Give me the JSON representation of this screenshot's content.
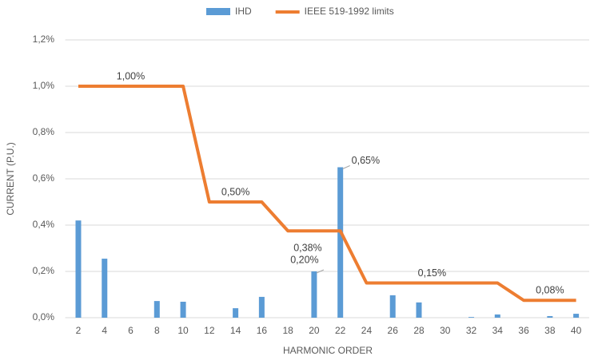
{
  "chart_data": {
    "type": "bar-line",
    "x_label": "HARMONIC ORDER",
    "y_label": "CURRENT (P.U.)",
    "xlim": [
      1,
      41
    ],
    "xticks": [
      2,
      4,
      6,
      8,
      10,
      12,
      14,
      16,
      18,
      20,
      22,
      24,
      26,
      28,
      30,
      32,
      34,
      36,
      38,
      40
    ],
    "ylim": [
      0,
      1.2
    ],
    "yticks": [
      {
        "value": 0,
        "label": "0,0%"
      },
      {
        "value": 0.2,
        "label": "0,2%"
      },
      {
        "value": 0.4,
        "label": "0,4%"
      },
      {
        "value": 0.6,
        "label": "0,6%"
      },
      {
        "value": 0.8,
        "label": "0,8%"
      },
      {
        "value": 1.0,
        "label": "1,0%"
      },
      {
        "value": 1.2,
        "label": "1,2%"
      }
    ],
    "grid": true,
    "legend": "top",
    "series": [
      {
        "name": "IHD",
        "type": "bar",
        "color": "#5b9bd5",
        "x": [
          2,
          4,
          6,
          8,
          10,
          12,
          14,
          16,
          18,
          20,
          22,
          24,
          26,
          28,
          30,
          32,
          34,
          36,
          38,
          40
        ],
        "values": [
          0.42,
          0.255,
          0,
          0.072,
          0.069,
          0,
          0.041,
          0.09,
          0,
          0.2,
          0.65,
          0,
          0.097,
          0.066,
          0,
          0.003,
          0.014,
          0,
          0.007,
          0.017
        ],
        "value_labels": [
          null,
          null,
          null,
          null,
          null,
          null,
          null,
          null,
          null,
          "0,20%",
          "0,65%",
          null,
          null,
          null,
          null,
          null,
          null,
          null,
          null,
          null
        ]
      },
      {
        "name": "IEEE 519-1992 limits",
        "type": "line",
        "color": "#ed7d31",
        "x": [
          2,
          10,
          12,
          16,
          18,
          22,
          24,
          34,
          36,
          40
        ],
        "values": [
          1.0,
          1.0,
          0.5,
          0.5,
          0.375,
          0.375,
          0.15,
          0.15,
          0.075,
          0.075
        ],
        "value_labels": [
          "1,00%",
          null,
          "0,50%",
          null,
          "0,38%",
          null,
          "0,15%",
          null,
          "0,08%",
          null
        ]
      }
    ]
  }
}
